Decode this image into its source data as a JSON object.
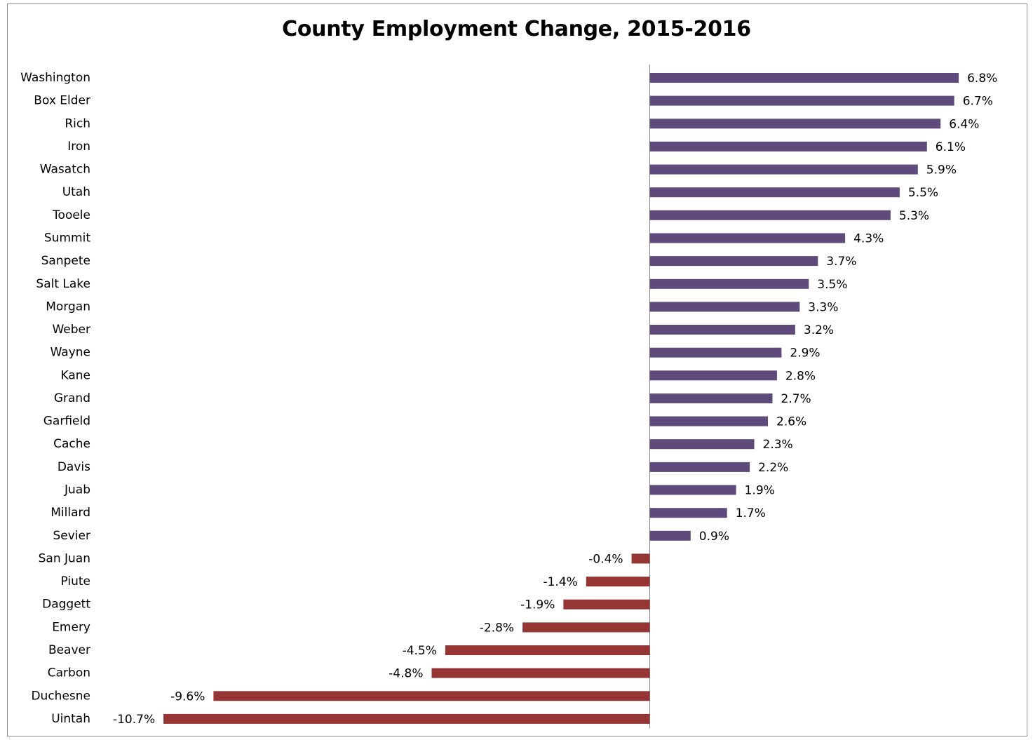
{
  "chart_data": {
    "type": "bar",
    "orientation": "horizontal",
    "title": "County Employment Change, 2015-2016",
    "xlabel": "",
    "ylabel": "",
    "grid": false,
    "legend": "none",
    "unit": "%",
    "categories": [
      "Washington",
      "Box Elder",
      "Rich",
      "Iron",
      "Wasatch",
      "Utah",
      "Tooele",
      "Summit",
      "Sanpete",
      "Salt Lake",
      "Morgan",
      "Weber",
      "Wayne",
      "Kane",
      "Grand",
      "Garfield",
      "Cache",
      "Davis",
      "Juab",
      "Millard",
      "Sevier",
      "San Juan",
      "Piute",
      "Daggett",
      "Emery",
      "Beaver",
      "Carbon",
      "Duchesne",
      "Uintah"
    ],
    "values": [
      6.8,
      6.7,
      6.4,
      6.1,
      5.9,
      5.5,
      5.3,
      4.3,
      3.7,
      3.5,
      3.3,
      3.2,
      2.9,
      2.8,
      2.7,
      2.6,
      2.3,
      2.2,
      1.9,
      1.7,
      0.9,
      -0.4,
      -1.4,
      -1.9,
      -2.8,
      -4.5,
      -4.8,
      -9.6,
      -10.7
    ],
    "value_labels": [
      "6.8%",
      "6.7%",
      "6.4%",
      "6.1%",
      "5.9%",
      "5.5%",
      "5.3%",
      "4.3%",
      "3.7%",
      "3.5%",
      "3.3%",
      "3.2%",
      "2.9%",
      "2.8%",
      "2.7%",
      "2.6%",
      "2.3%",
      "2.2%",
      "1.9%",
      "1.7%",
      "0.9%",
      "-0.4%",
      "-1.4%",
      "-1.9%",
      "-2.8%",
      "-4.5%",
      "-4.8%",
      "-9.6%",
      "-10.7%"
    ],
    "xlim": [
      -10.7,
      6.8
    ],
    "colors": {
      "positive": "#5f4a7c",
      "negative": "#963634",
      "axis": "#868686",
      "border": "#8c8c8c"
    }
  }
}
